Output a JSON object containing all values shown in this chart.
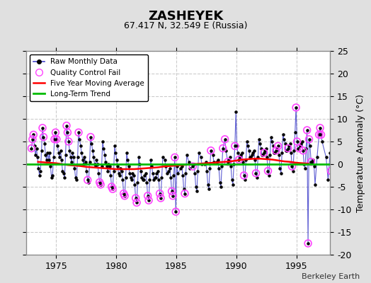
{
  "title": "ZASHEYEK",
  "subtitle": "67.417 N, 32.549 E (Russia)",
  "ylabel": "Temperature Anomaly (°C)",
  "attribution": "Berkeley Earth",
  "ylim": [
    -20,
    25
  ],
  "xlim": [
    1972.5,
    1997.8
  ],
  "xticks": [
    1975,
    1980,
    1985,
    1990,
    1995
  ],
  "yticks": [
    -20,
    -15,
    -10,
    -5,
    0,
    5,
    10,
    15,
    20,
    25
  ],
  "bg_color": "#e0e0e0",
  "plot_bg_color": "#ffffff",
  "grid_color": "#cccccc",
  "raw_line_color": "#4444cc",
  "raw_dot_color": "#000000",
  "qc_fail_color": "#ff44ff",
  "moving_avg_color": "#ff0000",
  "trend_color": "#00bb00",
  "raw_data": [
    [
      1972.958,
      3.5
    ],
    [
      1973.042,
      5.5
    ],
    [
      1973.125,
      6.5
    ],
    [
      1973.208,
      4.0
    ],
    [
      1973.292,
      2.0
    ],
    [
      1973.375,
      3.5
    ],
    [
      1973.458,
      1.5
    ],
    [
      1973.542,
      -1.0
    ],
    [
      1973.625,
      -2.5
    ],
    [
      1973.708,
      -1.5
    ],
    [
      1973.792,
      3.0
    ],
    [
      1973.875,
      8.0
    ],
    [
      1973.958,
      6.0
    ],
    [
      1974.042,
      4.5
    ],
    [
      1974.125,
      2.0
    ],
    [
      1974.208,
      1.0
    ],
    [
      1974.292,
      2.5
    ],
    [
      1974.375,
      1.0
    ],
    [
      1974.458,
      2.5
    ],
    [
      1974.542,
      -0.5
    ],
    [
      1974.625,
      -3.0
    ],
    [
      1974.708,
      -2.5
    ],
    [
      1974.792,
      1.5
    ],
    [
      1974.875,
      5.5
    ],
    [
      1974.958,
      7.0
    ],
    [
      1975.042,
      5.5
    ],
    [
      1975.125,
      4.0
    ],
    [
      1975.208,
      2.5
    ],
    [
      1975.292,
      1.5
    ],
    [
      1975.375,
      3.0
    ],
    [
      1975.458,
      1.0
    ],
    [
      1975.542,
      -1.5
    ],
    [
      1975.625,
      -2.0
    ],
    [
      1975.708,
      -3.0
    ],
    [
      1975.792,
      2.0
    ],
    [
      1975.875,
      8.5
    ],
    [
      1975.958,
      7.0
    ],
    [
      1976.042,
      5.0
    ],
    [
      1976.125,
      3.0
    ],
    [
      1976.208,
      1.5
    ],
    [
      1976.292,
      0.5
    ],
    [
      1976.375,
      2.5
    ],
    [
      1976.458,
      1.5
    ],
    [
      1976.542,
      -1.0
    ],
    [
      1976.625,
      -3.0
    ],
    [
      1976.708,
      -3.5
    ],
    [
      1976.792,
      1.5
    ],
    [
      1976.875,
      7.0
    ],
    [
      1976.958,
      5.5
    ],
    [
      1977.042,
      4.0
    ],
    [
      1977.125,
      2.5
    ],
    [
      1977.208,
      1.0
    ],
    [
      1977.292,
      0.0
    ],
    [
      1977.375,
      1.5
    ],
    [
      1977.458,
      0.5
    ],
    [
      1977.542,
      -1.5
    ],
    [
      1977.625,
      -3.5
    ],
    [
      1977.708,
      -4.0
    ],
    [
      1977.792,
      0.5
    ],
    [
      1977.875,
      6.0
    ],
    [
      1977.958,
      4.5
    ],
    [
      1978.042,
      3.0
    ],
    [
      1978.125,
      1.5
    ],
    [
      1978.208,
      0.0
    ],
    [
      1978.292,
      -0.5
    ],
    [
      1978.375,
      1.0
    ],
    [
      1978.458,
      0.0
    ],
    [
      1978.542,
      -2.0
    ],
    [
      1978.625,
      -4.0
    ],
    [
      1978.708,
      -4.5
    ],
    [
      1978.792,
      -0.5
    ],
    [
      1978.875,
      5.0
    ],
    [
      1978.958,
      3.5
    ],
    [
      1979.042,
      2.0
    ],
    [
      1979.125,
      0.5
    ],
    [
      1979.208,
      -0.5
    ],
    [
      1979.292,
      -1.5
    ],
    [
      1979.375,
      0.0
    ],
    [
      1979.458,
      -0.5
    ],
    [
      1979.542,
      -2.5
    ],
    [
      1979.625,
      -5.0
    ],
    [
      1979.708,
      -5.5
    ],
    [
      1979.792,
      -1.5
    ],
    [
      1979.875,
      4.0
    ],
    [
      1979.958,
      2.5
    ],
    [
      1980.042,
      1.0
    ],
    [
      1980.125,
      -0.5
    ],
    [
      1980.208,
      -2.0
    ],
    [
      1980.292,
      -2.5
    ],
    [
      1980.375,
      -1.0
    ],
    [
      1980.458,
      -1.5
    ],
    [
      1980.542,
      -3.5
    ],
    [
      1980.625,
      -6.5
    ],
    [
      1980.708,
      -7.0
    ],
    [
      1980.792,
      -3.0
    ],
    [
      1980.875,
      2.5
    ],
    [
      1980.958,
      1.0
    ],
    [
      1981.042,
      -0.5
    ],
    [
      1981.125,
      -2.0
    ],
    [
      1981.208,
      -3.0
    ],
    [
      1981.292,
      -3.5
    ],
    [
      1981.375,
      -2.0
    ],
    [
      1981.458,
      -2.5
    ],
    [
      1981.542,
      -4.5
    ],
    [
      1981.625,
      -7.5
    ],
    [
      1981.708,
      -8.5
    ],
    [
      1981.792,
      -4.0
    ],
    [
      1981.875,
      1.5
    ],
    [
      1981.958,
      0.0
    ],
    [
      1982.042,
      -1.5
    ],
    [
      1982.125,
      -3.0
    ],
    [
      1982.208,
      -3.5
    ],
    [
      1982.292,
      -3.5
    ],
    [
      1982.375,
      -2.5
    ],
    [
      1982.458,
      -2.0
    ],
    [
      1982.542,
      -4.0
    ],
    [
      1982.625,
      -7.0
    ],
    [
      1982.708,
      -8.0
    ],
    [
      1982.792,
      -3.5
    ],
    [
      1982.875,
      1.0
    ],
    [
      1982.958,
      -0.5
    ],
    [
      1983.042,
      -2.0
    ],
    [
      1983.125,
      -3.5
    ],
    [
      1983.208,
      -3.0
    ],
    [
      1983.292,
      -3.0
    ],
    [
      1983.375,
      -2.0
    ],
    [
      1983.458,
      -1.5
    ],
    [
      1983.542,
      -3.5
    ],
    [
      1983.625,
      -6.5
    ],
    [
      1983.708,
      -7.5
    ],
    [
      1983.792,
      -3.0
    ],
    [
      1983.875,
      1.5
    ],
    [
      1984.042,
      1.0
    ],
    [
      1984.125,
      -0.5
    ],
    [
      1984.208,
      -2.0
    ],
    [
      1984.375,
      -1.5
    ],
    [
      1984.458,
      -1.0
    ],
    [
      1984.542,
      -3.0
    ],
    [
      1984.625,
      -6.0
    ],
    [
      1984.708,
      -7.0
    ],
    [
      1984.792,
      -2.5
    ],
    [
      1984.875,
      1.5
    ],
    [
      1984.958,
      -10.5
    ],
    [
      1985.042,
      -0.5
    ],
    [
      1985.125,
      -2.0
    ],
    [
      1985.375,
      -1.0
    ],
    [
      1985.458,
      -0.5
    ],
    [
      1985.542,
      -2.5
    ],
    [
      1985.625,
      -5.5
    ],
    [
      1985.708,
      -6.5
    ],
    [
      1985.792,
      -2.0
    ],
    [
      1985.875,
      2.0
    ],
    [
      1986.042,
      0.5
    ],
    [
      1986.125,
      -1.0
    ],
    [
      1986.375,
      -0.5
    ],
    [
      1986.458,
      0.0
    ],
    [
      1986.542,
      -2.0
    ],
    [
      1986.625,
      -5.0
    ],
    [
      1986.708,
      -6.0
    ],
    [
      1986.792,
      -1.5
    ],
    [
      1986.875,
      2.5
    ],
    [
      1987.042,
      1.5
    ],
    [
      1987.125,
      0.0
    ],
    [
      1987.375,
      0.0
    ],
    [
      1987.458,
      0.5
    ],
    [
      1987.542,
      -1.5
    ],
    [
      1987.625,
      -4.5
    ],
    [
      1987.708,
      -5.5
    ],
    [
      1987.792,
      -1.0
    ],
    [
      1987.875,
      3.0
    ],
    [
      1988.042,
      2.0
    ],
    [
      1988.125,
      0.5
    ],
    [
      1988.375,
      0.5
    ],
    [
      1988.458,
      1.0
    ],
    [
      1988.542,
      -1.0
    ],
    [
      1988.625,
      -4.0
    ],
    [
      1988.708,
      -5.0
    ],
    [
      1988.792,
      -0.5
    ],
    [
      1988.875,
      3.5
    ],
    [
      1989.042,
      5.5
    ],
    [
      1989.125,
      3.0
    ],
    [
      1989.292,
      0.5
    ],
    [
      1989.375,
      1.0
    ],
    [
      1989.458,
      1.5
    ],
    [
      1989.542,
      -0.5
    ],
    [
      1989.625,
      -3.5
    ],
    [
      1989.708,
      -4.5
    ],
    [
      1989.792,
      0.0
    ],
    [
      1989.875,
      4.0
    ],
    [
      1989.958,
      11.5
    ],
    [
      1990.042,
      4.0
    ],
    [
      1990.125,
      2.5
    ],
    [
      1990.208,
      1.0
    ],
    [
      1990.292,
      1.5
    ],
    [
      1990.375,
      2.0
    ],
    [
      1990.458,
      2.5
    ],
    [
      1990.542,
      0.5
    ],
    [
      1990.625,
      -2.5
    ],
    [
      1990.708,
      -3.5
    ],
    [
      1990.792,
      1.0
    ],
    [
      1990.875,
      5.0
    ],
    [
      1990.958,
      4.0
    ],
    [
      1991.042,
      3.0
    ],
    [
      1991.125,
      1.5
    ],
    [
      1991.208,
      1.5
    ],
    [
      1991.292,
      2.0
    ],
    [
      1991.375,
      2.5
    ],
    [
      1991.458,
      3.0
    ],
    [
      1991.542,
      1.0
    ],
    [
      1991.625,
      -2.0
    ],
    [
      1991.708,
      -3.0
    ],
    [
      1991.792,
      1.5
    ],
    [
      1991.875,
      5.5
    ],
    [
      1991.958,
      4.5
    ],
    [
      1992.042,
      3.5
    ],
    [
      1992.125,
      2.0
    ],
    [
      1992.208,
      2.0
    ],
    [
      1992.292,
      2.5
    ],
    [
      1992.375,
      3.0
    ],
    [
      1992.458,
      3.5
    ],
    [
      1992.542,
      1.5
    ],
    [
      1992.625,
      -1.5
    ],
    [
      1992.708,
      -2.5
    ],
    [
      1992.792,
      2.0
    ],
    [
      1992.875,
      6.0
    ],
    [
      1992.958,
      5.0
    ],
    [
      1993.042,
      4.0
    ],
    [
      1993.125,
      2.5
    ],
    [
      1993.208,
      2.5
    ],
    [
      1993.292,
      3.0
    ],
    [
      1993.375,
      3.5
    ],
    [
      1993.458,
      4.0
    ],
    [
      1993.542,
      2.0
    ],
    [
      1993.625,
      -1.0
    ],
    [
      1993.708,
      -2.0
    ],
    [
      1993.792,
      2.5
    ],
    [
      1993.875,
      6.5
    ],
    [
      1993.958,
      5.5
    ],
    [
      1994.042,
      4.5
    ],
    [
      1994.125,
      3.0
    ],
    [
      1994.208,
      3.0
    ],
    [
      1994.292,
      3.5
    ],
    [
      1994.375,
      4.0
    ],
    [
      1994.458,
      4.5
    ],
    [
      1994.542,
      2.5
    ],
    [
      1994.625,
      -0.5
    ],
    [
      1994.708,
      -1.5
    ],
    [
      1994.792,
      3.0
    ],
    [
      1994.875,
      7.0
    ],
    [
      1994.958,
      12.5
    ],
    [
      1995.042,
      5.0
    ],
    [
      1995.125,
      3.5
    ],
    [
      1995.208,
      3.5
    ],
    [
      1995.292,
      4.0
    ],
    [
      1995.375,
      4.5
    ],
    [
      1995.458,
      5.0
    ],
    [
      1995.542,
      3.0
    ],
    [
      1995.625,
      0.0
    ],
    [
      1995.708,
      -1.0
    ],
    [
      1995.792,
      3.5
    ],
    [
      1995.875,
      7.5
    ],
    [
      1995.958,
      -17.5
    ],
    [
      1996.042,
      5.5
    ],
    [
      1996.125,
      4.0
    ],
    [
      1996.208,
      0.5
    ],
    [
      1996.292,
      0.5
    ],
    [
      1996.375,
      1.0
    ],
    [
      1996.458,
      -0.5
    ],
    [
      1996.542,
      -4.5
    ],
    [
      1996.708,
      1.5
    ],
    [
      1996.875,
      6.5
    ],
    [
      1996.958,
      8.0
    ],
    [
      1997.042,
      6.5
    ],
    [
      1997.125,
      5.0
    ],
    [
      1997.458,
      1.5
    ],
    [
      1997.625,
      -3.5
    ],
    [
      1997.792,
      2.5
    ],
    [
      1997.875,
      -1.5
    ]
  ],
  "qc_fail_points": [
    [
      1972.958,
      3.5
    ],
    [
      1973.042,
      5.5
    ],
    [
      1973.125,
      6.5
    ],
    [
      1973.875,
      8.0
    ],
    [
      1973.958,
      6.0
    ],
    [
      1974.875,
      5.5
    ],
    [
      1974.958,
      7.0
    ],
    [
      1975.042,
      5.5
    ],
    [
      1975.875,
      8.5
    ],
    [
      1975.958,
      7.0
    ],
    [
      1976.042,
      5.0
    ],
    [
      1976.875,
      7.0
    ],
    [
      1977.625,
      -3.5
    ],
    [
      1977.875,
      6.0
    ],
    [
      1978.625,
      -4.0
    ],
    [
      1978.708,
      -4.5
    ],
    [
      1979.625,
      -5.0
    ],
    [
      1979.708,
      -5.5
    ],
    [
      1980.625,
      -6.5
    ],
    [
      1980.708,
      -7.0
    ],
    [
      1981.625,
      -7.5
    ],
    [
      1981.708,
      -8.5
    ],
    [
      1982.625,
      -7.0
    ],
    [
      1982.708,
      -8.0
    ],
    [
      1983.625,
      -6.5
    ],
    [
      1983.708,
      -7.5
    ],
    [
      1984.625,
      -6.0
    ],
    [
      1984.708,
      -7.0
    ],
    [
      1984.958,
      -10.5
    ],
    [
      1985.708,
      -6.5
    ],
    [
      1984.875,
      1.5
    ],
    [
      1986.375,
      -0.5
    ],
    [
      1987.875,
      3.0
    ],
    [
      1988.875,
      3.5
    ],
    [
      1989.042,
      5.5
    ],
    [
      1989.292,
      0.5
    ],
    [
      1989.875,
      4.0
    ],
    [
      1990.208,
      1.0
    ],
    [
      1990.625,
      -2.5
    ],
    [
      1991.625,
      -2.0
    ],
    [
      1992.292,
      2.5
    ],
    [
      1992.625,
      -1.5
    ],
    [
      1993.292,
      3.0
    ],
    [
      1993.458,
      4.0
    ],
    [
      1994.292,
      3.5
    ],
    [
      1994.625,
      -0.5
    ],
    [
      1994.958,
      12.5
    ],
    [
      1995.042,
      5.0
    ],
    [
      1995.208,
      3.5
    ],
    [
      1995.542,
      3.0
    ],
    [
      1995.875,
      7.5
    ],
    [
      1995.958,
      -17.5
    ],
    [
      1996.042,
      5.5
    ],
    [
      1996.208,
      0.5
    ],
    [
      1996.875,
      6.5
    ],
    [
      1996.958,
      8.0
    ],
    [
      1997.042,
      6.5
    ],
    [
      1997.875,
      -1.5
    ]
  ],
  "moving_avg": [
    [
      1973.5,
      0.5
    ],
    [
      1974.0,
      0.4
    ],
    [
      1974.5,
      0.3
    ],
    [
      1975.0,
      0.2
    ],
    [
      1975.5,
      0.0
    ],
    [
      1976.0,
      -0.2
    ],
    [
      1976.5,
      -0.3
    ],
    [
      1977.0,
      -0.4
    ],
    [
      1977.5,
      -0.6
    ],
    [
      1978.0,
      -0.7
    ],
    [
      1978.5,
      -0.8
    ],
    [
      1979.0,
      -0.9
    ],
    [
      1979.5,
      -1.0
    ],
    [
      1980.0,
      -1.1
    ],
    [
      1980.5,
      -1.1
    ],
    [
      1981.0,
      -1.1
    ],
    [
      1981.5,
      -1.1
    ],
    [
      1982.0,
      -1.0
    ],
    [
      1982.5,
      -0.9
    ],
    [
      1983.0,
      -0.8
    ],
    [
      1983.5,
      -0.7
    ],
    [
      1984.0,
      -0.5
    ],
    [
      1984.5,
      -0.4
    ],
    [
      1985.0,
      -0.3
    ],
    [
      1985.5,
      -0.2
    ],
    [
      1986.0,
      -0.1
    ],
    [
      1986.5,
      0.0
    ],
    [
      1987.0,
      0.1
    ],
    [
      1987.5,
      0.2
    ],
    [
      1988.0,
      0.3
    ],
    [
      1988.5,
      0.4
    ],
    [
      1989.0,
      0.5
    ],
    [
      1989.5,
      0.6
    ],
    [
      1990.0,
      0.8
    ],
    [
      1990.5,
      1.0
    ],
    [
      1991.0,
      1.1
    ],
    [
      1991.5,
      1.2
    ],
    [
      1992.0,
      1.2
    ],
    [
      1992.5,
      1.1
    ],
    [
      1993.0,
      1.0
    ],
    [
      1993.5,
      0.8
    ],
    [
      1994.0,
      0.6
    ],
    [
      1994.5,
      0.5
    ],
    [
      1995.0,
      0.3
    ],
    [
      1995.5,
      0.2
    ],
    [
      1996.0,
      0.1
    ]
  ],
  "trend_x": [
    1972.5,
    1997.8
  ],
  "trend_y": [
    0.0,
    0.0
  ]
}
